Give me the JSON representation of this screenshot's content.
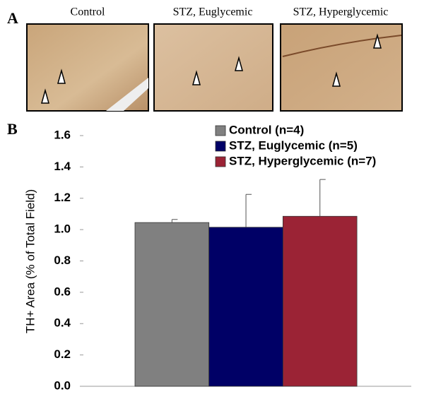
{
  "panel_a": {
    "label": "A",
    "images": [
      {
        "title": "Control"
      },
      {
        "title": "STZ, Euglycemic"
      },
      {
        "title": "STZ, Hyperglycemic"
      }
    ]
  },
  "panel_b": {
    "label": "B"
  },
  "chart_data": {
    "type": "bar",
    "y_label": "TH+ Area (% of Total Field)",
    "series": [
      {
        "name": "Control (n=4)",
        "color": "#808080",
        "values": [
          1.045
        ],
        "errors": [
          0.02
        ]
      },
      {
        "name": "STZ, Euglycemic (n=5)",
        "color": "#000066",
        "values": [
          1.015
        ],
        "errors": [
          0.21
        ]
      },
      {
        "name": "STZ, Hyperglycemic (n=7)",
        "color": "#9b2335",
        "values": [
          1.085
        ],
        "errors": [
          0.235
        ]
      }
    ],
    "ylim": [
      0,
      1.6
    ],
    "yticks": [
      {
        "value": 0,
        "label": "0.0"
      },
      {
        "value": 0.2,
        "label": "0.2"
      },
      {
        "value": 0.4,
        "label": "0.4"
      },
      {
        "value": 0.6,
        "label": "0.6"
      },
      {
        "value": 0.8,
        "label": "0.8"
      },
      {
        "value": 1,
        "label": "1.0"
      },
      {
        "value": 1.2,
        "label": "1.2"
      },
      {
        "value": 1.4,
        "label": "1.4"
      },
      {
        "value": 1.6,
        "label": "1.6"
      }
    ],
    "legend": "top-right"
  }
}
